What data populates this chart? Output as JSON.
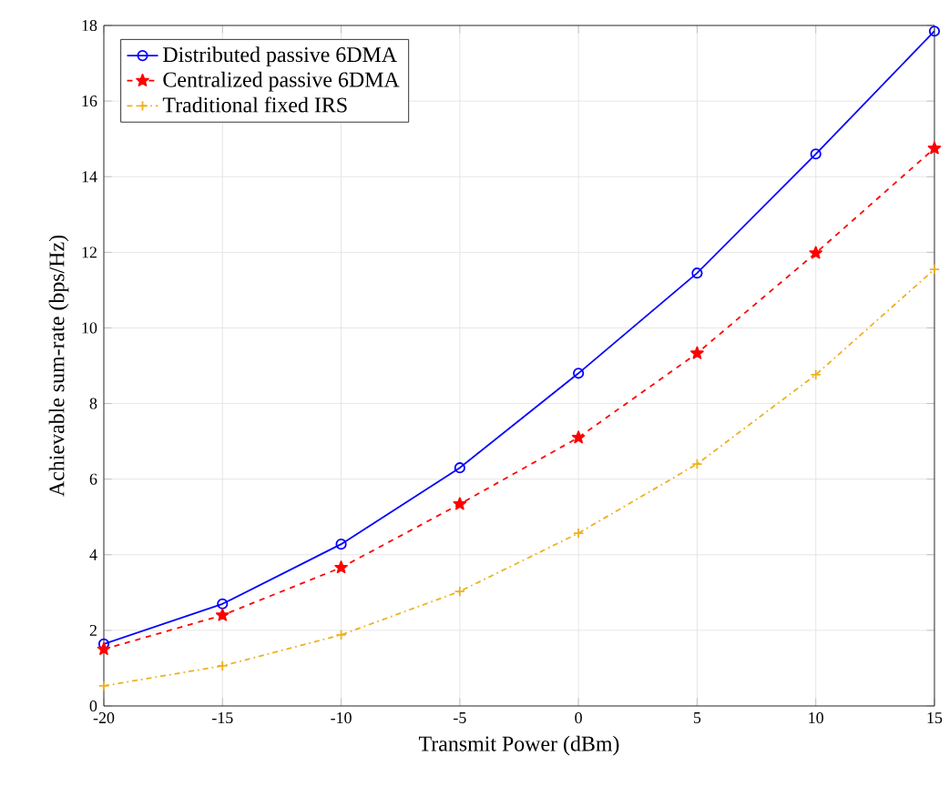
{
  "chart_data": {
    "type": "line",
    "xlabel": "Transmit Power (dBm)",
    "ylabel": "Achievable sum-rate (bps/Hz)",
    "x": [
      -20,
      -15,
      -10,
      -5,
      0,
      5,
      10,
      15
    ],
    "series": [
      {
        "name": "Distributed passive 6DMA",
        "color": "#0000ff",
        "marker": "circle",
        "line_style": "solid",
        "values": [
          1.64,
          2.7,
          4.28,
          6.3,
          8.8,
          11.45,
          14.6,
          17.85
        ]
      },
      {
        "name": "Centralized passive 6DMA",
        "color": "#ff0000",
        "marker": "star",
        "line_style": "dashed",
        "values": [
          1.5,
          2.4,
          3.66,
          5.34,
          7.1,
          9.33,
          11.98,
          14.75
        ]
      },
      {
        "name": "Traditional fixed IRS",
        "color": "#edb120",
        "marker": "cross",
        "line_style": "dashdot",
        "values": [
          0.53,
          1.06,
          1.88,
          3.03,
          4.57,
          6.4,
          8.76,
          11.55
        ]
      }
    ],
    "xlim": [
      -20,
      15
    ],
    "ylim": [
      0,
      18
    ],
    "xticks": [
      -20,
      -15,
      -10,
      -5,
      0,
      5,
      10,
      15
    ],
    "yticks": [
      0,
      2,
      4,
      6,
      8,
      10,
      12,
      14,
      16,
      18
    ],
    "grid": true,
    "legend": "top left"
  }
}
